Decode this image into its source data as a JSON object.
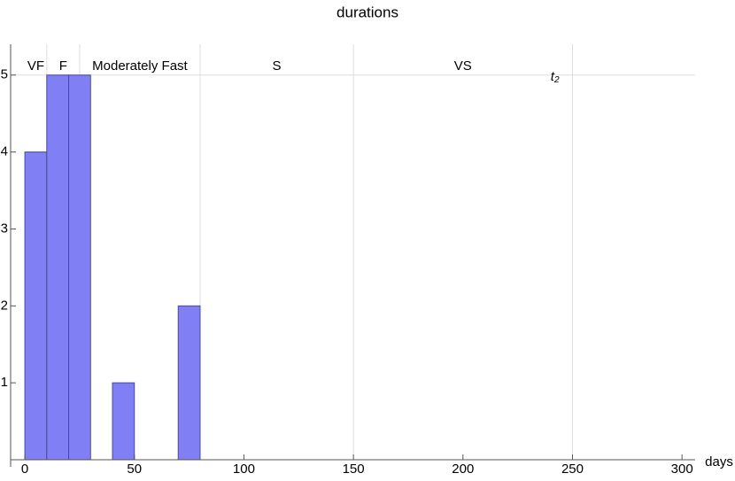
{
  "chart_data": {
    "type": "histogram",
    "title": "durations",
    "x_label": "days",
    "bins": [
      0,
      10,
      20,
      30,
      40,
      50,
      60,
      70,
      80
    ],
    "values": [
      4,
      5,
      5,
      0,
      1,
      0,
      0,
      2
    ],
    "color": "#8080f4",
    "xlim": [
      -6.5,
      306
    ],
    "ylim": [
      0,
      5.4
    ],
    "xticks": [
      0,
      50,
      100,
      150,
      200,
      250,
      300
    ],
    "yticks": [
      1,
      2,
      3,
      4,
      5
    ],
    "regions": [
      {
        "name": "VF",
        "start": 0,
        "end": 10
      },
      {
        "name": "F",
        "start": 10,
        "end": 25
      },
      {
        "name": "Moderately Fast",
        "start": 25,
        "end": 80
      },
      {
        "name": "S",
        "start": 80,
        "end": 150
      },
      {
        "name": "VS",
        "start": 150,
        "end": 250
      }
    ],
    "annotation": {
      "text": "t₂",
      "x": 242
    },
    "grid": true
  }
}
